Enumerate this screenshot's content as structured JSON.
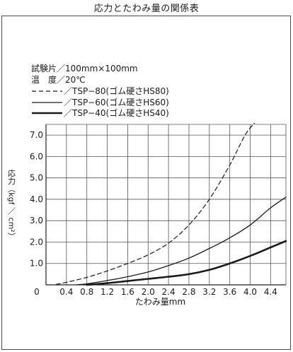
{
  "chart_data": {
    "type": "line",
    "title": "応力とたわみ量の関係表",
    "xlabel": "たわみ量mm",
    "ylabel": "応力（kgf ／ cm²）",
    "xlim": [
      0,
      4.7
    ],
    "ylim": [
      0,
      7.5
    ],
    "x_ticks": [
      "0",
      "0.4",
      "0.8",
      "1.2",
      "1.6",
      "2.0",
      "2.4",
      "2.8",
      "3.2",
      "3.6",
      "4.0",
      "4.4"
    ],
    "y_ticks": [
      "1.0",
      "2.0",
      "3.0",
      "4.0",
      "5.0",
      "6.0",
      "7.0"
    ],
    "grid": true,
    "notes": {
      "specimen": "試験片／100mm×100mm",
      "temperature": "温　度／20℃"
    },
    "series": [
      {
        "name": "／TSP−80(ゴム硬さHS80)",
        "line_style": "dashed",
        "color": "#1a1a1a",
        "x": [
          0.2,
          0.4,
          0.8,
          1.2,
          1.6,
          2.0,
          2.4,
          2.8,
          3.2,
          3.6,
          3.9,
          4.1
        ],
        "y": [
          0.02,
          0.12,
          0.35,
          0.65,
          1.0,
          1.4,
          1.95,
          2.8,
          4.0,
          5.6,
          7.0,
          7.6
        ]
      },
      {
        "name": "／TSP−60(ゴム硬さHS60)",
        "line_style": "solid",
        "color": "#1a1a1a",
        "x": [
          0.6,
          0.8,
          1.2,
          1.6,
          2.0,
          2.4,
          2.8,
          3.2,
          3.6,
          4.0,
          4.4,
          4.7
        ],
        "y": [
          0.0,
          0.05,
          0.2,
          0.38,
          0.6,
          0.9,
          1.25,
          1.7,
          2.2,
          2.8,
          3.6,
          4.1
        ]
      },
      {
        "name": "／TSP−40(ゴム硬さHS40)",
        "line_style": "solid-bold",
        "color": "#1a1a1a",
        "x": [
          0.8,
          1.2,
          1.6,
          2.0,
          2.4,
          2.8,
          3.2,
          3.6,
          4.0,
          4.4,
          4.7
        ],
        "y": [
          0.0,
          0.08,
          0.18,
          0.28,
          0.38,
          0.5,
          0.7,
          1.0,
          1.35,
          1.75,
          2.05
        ]
      }
    ]
  }
}
